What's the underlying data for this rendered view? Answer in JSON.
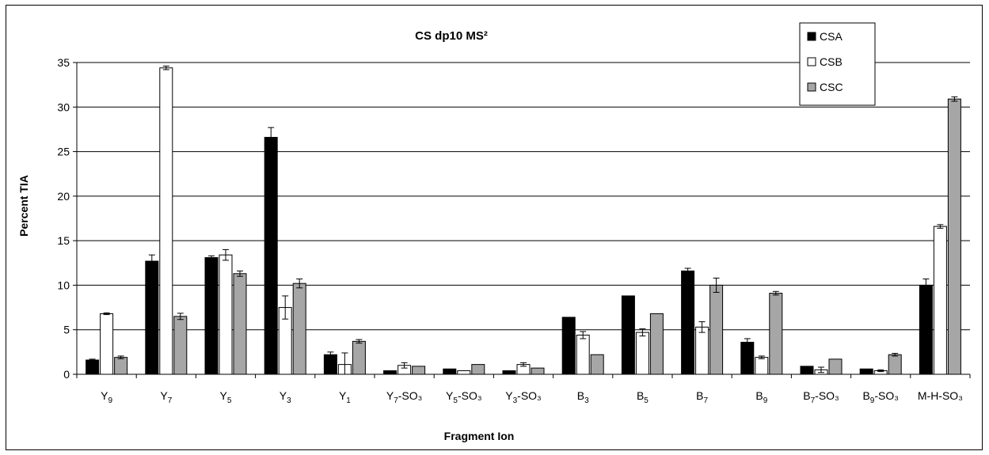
{
  "chart_data": {
    "type": "bar",
    "title": "CS dp10 MS²",
    "xlabel": "Fragment Ion",
    "ylabel": "Percent TIA",
    "ylim": [
      0,
      35
    ],
    "yticks": [
      "0",
      "5",
      "10",
      "15",
      "20",
      "25",
      "30",
      "35"
    ],
    "grid": "horizontal",
    "legend_position": "top-right",
    "categories": [
      {
        "base": "Y",
        "sub": "9",
        "suffix": ""
      },
      {
        "base": "Y",
        "sub": "7",
        "suffix": ""
      },
      {
        "base": "Y",
        "sub": "5",
        "suffix": ""
      },
      {
        "base": "Y",
        "sub": "3",
        "suffix": ""
      },
      {
        "base": "Y",
        "sub": "1",
        "suffix": ""
      },
      {
        "base": "Y",
        "sub": "7",
        "suffix": "-SO₃"
      },
      {
        "base": "Y",
        "sub": "5",
        "suffix": "-SO₃"
      },
      {
        "base": "Y",
        "sub": "3",
        "suffix": "-SO₃"
      },
      {
        "base": "B",
        "sub": "3",
        "suffix": ""
      },
      {
        "base": "B",
        "sub": "5",
        "suffix": ""
      },
      {
        "base": "B",
        "sub": "7",
        "suffix": ""
      },
      {
        "base": "B",
        "sub": "9",
        "suffix": ""
      },
      {
        "base": "B",
        "sub": "7",
        "suffix": "-SO₃"
      },
      {
        "base": "B",
        "sub": "9",
        "suffix": "-SO₃"
      },
      {
        "base": "M-H-SO₃",
        "sub": "",
        "suffix": ""
      }
    ],
    "series": [
      {
        "name": "CSA",
        "color": "#000000",
        "values": [
          1.6,
          12.7,
          13.1,
          26.6,
          2.2,
          0.4,
          0.6,
          0.4,
          6.4,
          8.8,
          11.6,
          3.6,
          0.9,
          0.6,
          10.0
        ],
        "errors": [
          0.1,
          0.7,
          0.2,
          1.1,
          0.3,
          0.05,
          0.05,
          0.05,
          0.05,
          0.05,
          0.3,
          0.4,
          0.05,
          0.05,
          0.7
        ]
      },
      {
        "name": "CSB",
        "color": "#ffffff",
        "values": [
          6.8,
          34.4,
          13.4,
          7.5,
          1.1,
          1.0,
          0.4,
          1.1,
          4.4,
          4.7,
          5.3,
          1.9,
          0.5,
          0.4,
          16.6
        ],
        "errors": [
          0.1,
          0.2,
          0.6,
          1.3,
          1.3,
          0.3,
          0.05,
          0.2,
          0.4,
          0.4,
          0.6,
          0.15,
          0.3,
          0.1,
          0.2
        ]
      },
      {
        "name": "CSC",
        "color": "#a6a6a6",
        "values": [
          1.9,
          6.5,
          11.3,
          10.2,
          3.7,
          0.9,
          1.1,
          0.7,
          2.2,
          6.8,
          10.0,
          9.1,
          1.7,
          2.2,
          30.9
        ],
        "errors": [
          0.15,
          0.35,
          0.3,
          0.5,
          0.2,
          0.05,
          0.05,
          0.05,
          0.05,
          0.05,
          0.8,
          0.2,
          0.05,
          0.15,
          0.25
        ]
      }
    ]
  }
}
